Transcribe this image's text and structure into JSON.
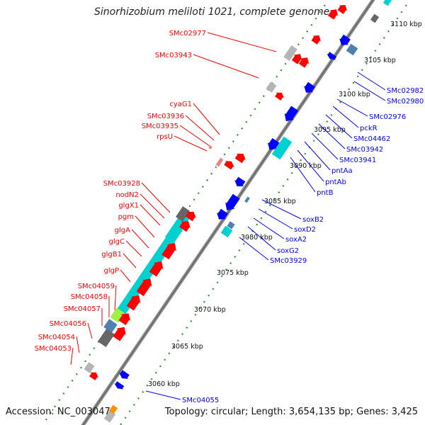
{
  "title": "Sinorhizobium meliloti 1021, complete genome",
  "accession": "Accession: NC_003047",
  "topology": "Topology: circular; Length: 3,654,135 bp; Genes: 3,425",
  "colors": {
    "forward": "#ff0000",
    "reverse": "#0000ff",
    "axis": "#8c8c8c",
    "tick_dot": "#2f8f2f",
    "rna": "#00d0d0",
    "gray": "#b5b5b5",
    "dark_gray": "#666666",
    "steel": "#5080b0",
    "lime": "#a0f040",
    "orange": "#ff9000"
  },
  "kbp_ticks": [
    "3060 kbp",
    "3065 kbp",
    "3070 kbp",
    "3075 kbp",
    "3080 kbp",
    "3085 kbp",
    "3090 kbp",
    "3095 kbp",
    "3100 kbp",
    "3105 kbp",
    "3110 kbp"
  ],
  "forward_genes": [
    "SMc02977",
    "SMc03943",
    "cyaG1",
    "SMc03936",
    "SMc03935",
    "rpsU",
    "SMc03928",
    "nodN2",
    "glgX1",
    "pgm",
    "glgA",
    "glgC",
    "glgB1",
    "glgP",
    "SMc04059",
    "SMc04058",
    "SMc04057",
    "SMc04056",
    "SMc04054",
    "SMc04053"
  ],
  "reverse_genes": [
    "SMc02982",
    "SMc02980",
    "SMc02976",
    "pckR",
    "SMc04462",
    "SMc03942",
    "SMc03941",
    "pntAa",
    "pntAb",
    "pntB",
    "soxB2",
    "soxD2",
    "soxA2",
    "soxG2",
    "SMc03929",
    "SMc04055"
  ]
}
